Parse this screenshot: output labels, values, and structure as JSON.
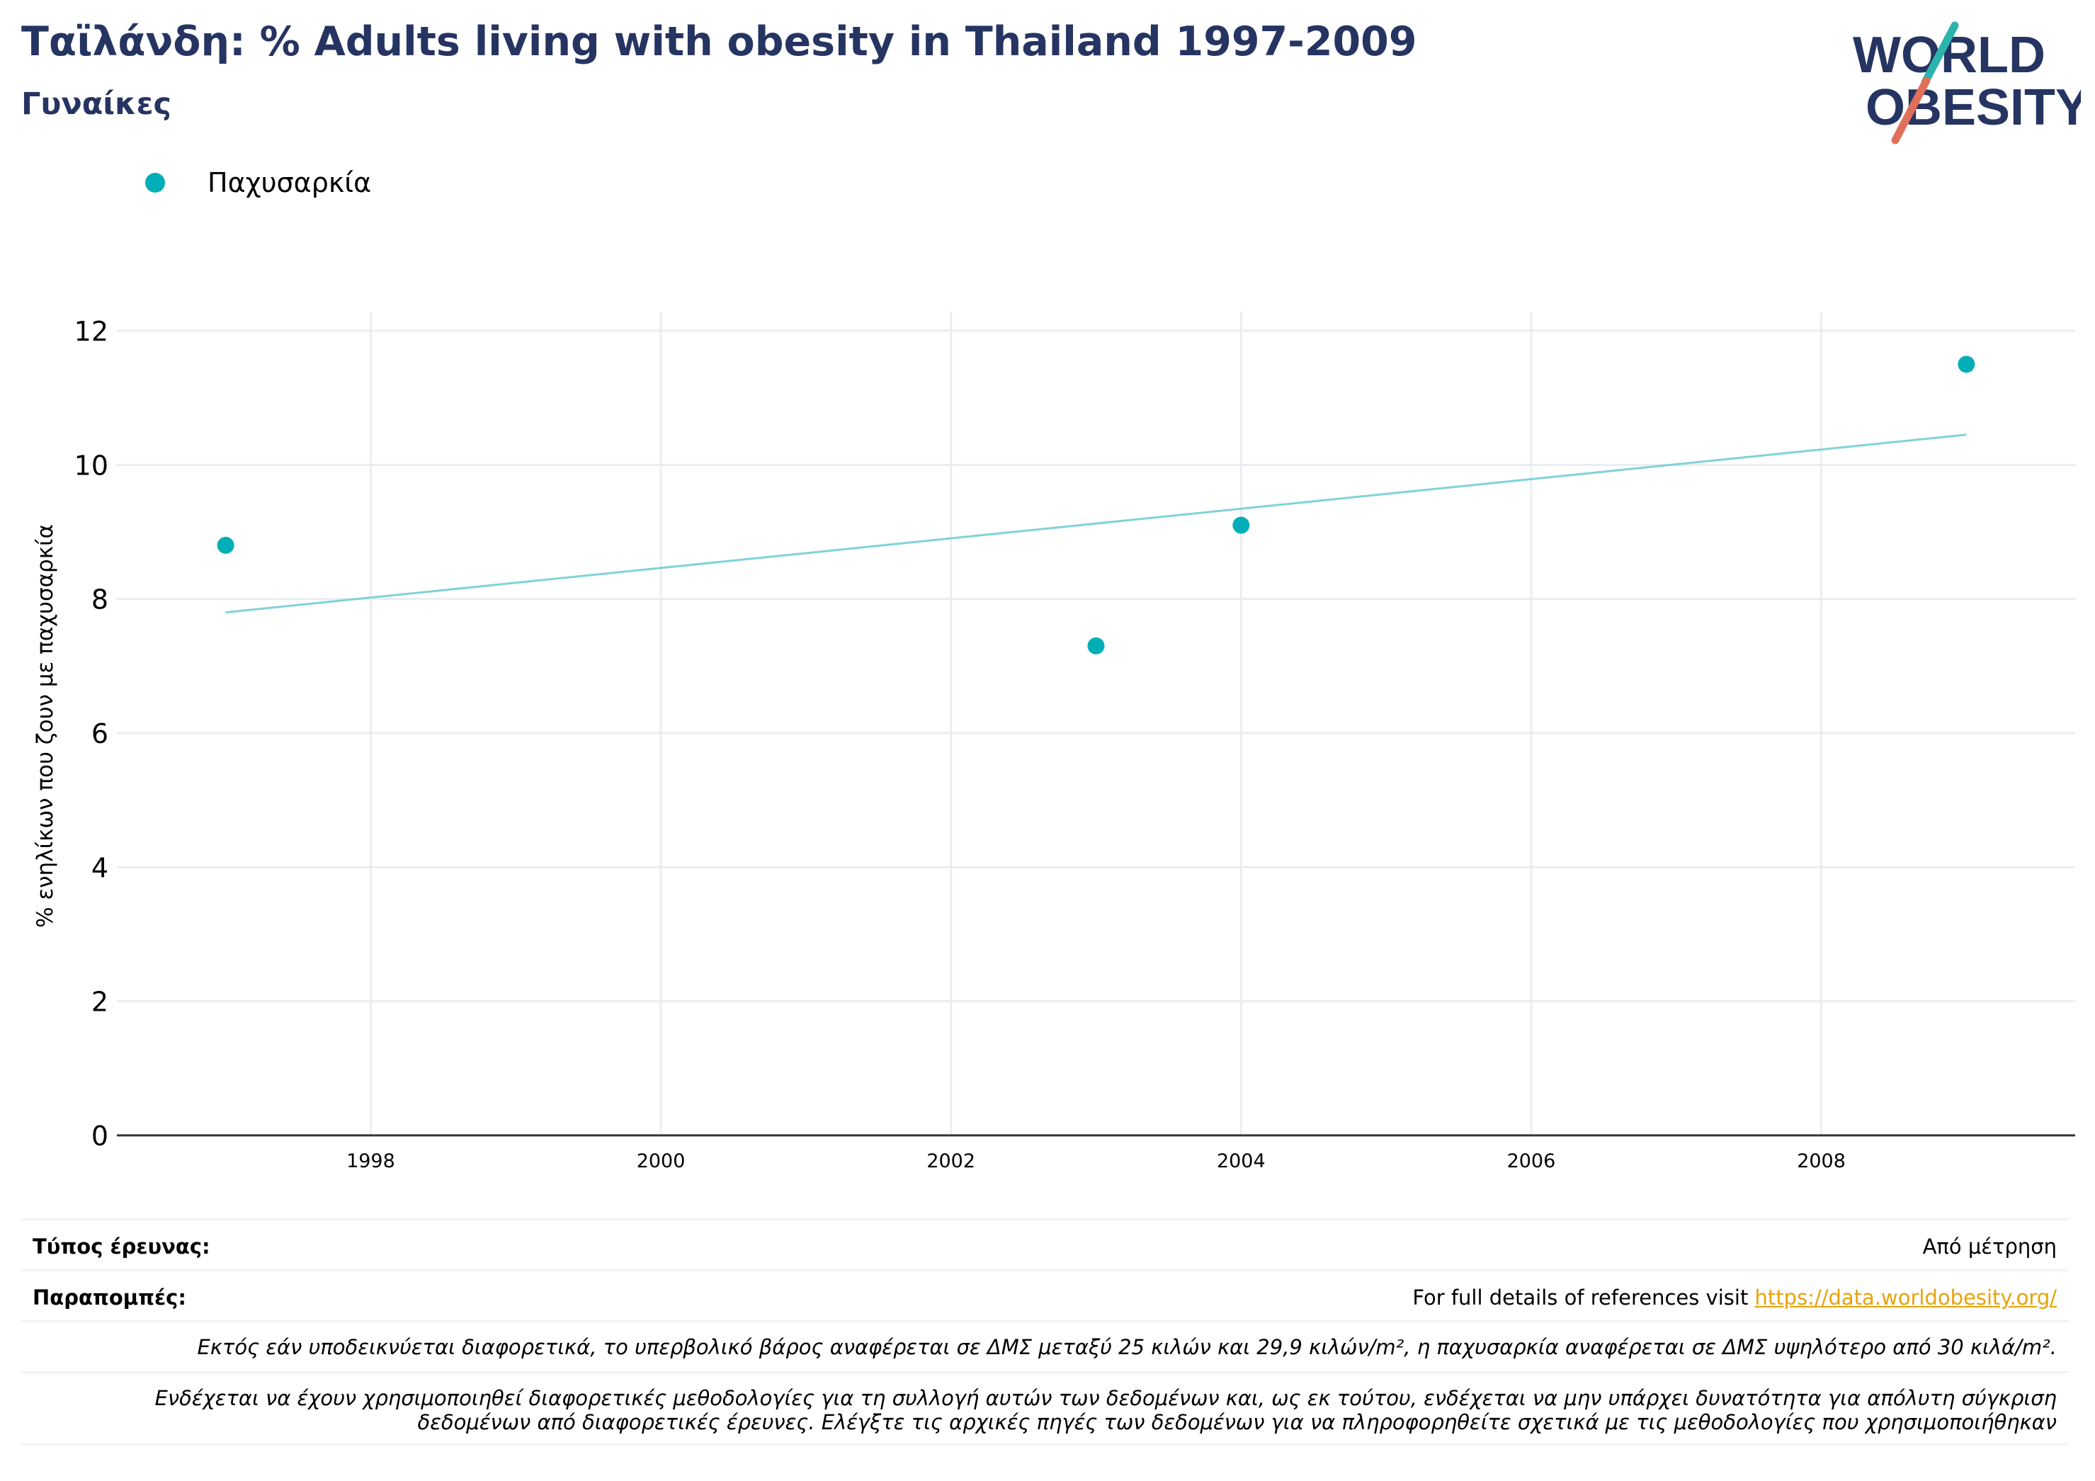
{
  "header": {
    "title": "Ταϊλάνδη: % Adults living with obesity in Thailand 1997-2009",
    "subtitle": "Γυναίκες"
  },
  "logo": {
    "line1": "WORLD",
    "line2": "OBESITY"
  },
  "colors": {
    "title": "#263462",
    "series": "#00aeb8",
    "trend": "#7fd3d8",
    "grid": "#eaedf1",
    "axis": "#333333",
    "link": "#e8a20a",
    "logo_slash_top": "#2bb4ad",
    "logo_slash_bottom": "#e0705a"
  },
  "chart_data": {
    "type": "scatter",
    "title": "Ταϊλάνδη: % Adults living with obesity in Thailand 1997-2009",
    "subtitle": "Γυναίκες",
    "xlabel": "",
    "ylabel": "% ενηλίκων που ζουν με παχυσαρκία",
    "xlim": [
      1996.25,
      2009.75
    ],
    "ylim": [
      0,
      12
    ],
    "x_ticks": [
      1998,
      2000,
      2002,
      2004,
      2006,
      2008
    ],
    "y_ticks": [
      0,
      2,
      4,
      6,
      8,
      10,
      12
    ],
    "grid": true,
    "legend": "top-left",
    "series": [
      {
        "name": "Παχυσαρκία",
        "points": [
          {
            "x": 1997,
            "y": 8.8
          },
          {
            "x": 2003,
            "y": 7.3
          },
          {
            "x": 2004,
            "y": 9.1
          },
          {
            "x": 2009,
            "y": 11.5
          }
        ]
      }
    ],
    "trendline": {
      "x": [
        1997,
        2009
      ],
      "y": [
        7.8,
        10.45
      ]
    }
  },
  "footer": {
    "survey_type_label": "Τύπος έρευνας:",
    "survey_type_value": "Από μέτρηση",
    "references_label": "Παραπομπές:",
    "references_text": "For full details of references visit ",
    "references_link": "https://data.worldobesity.org/",
    "note1": "Εκτός εάν υποδεικνύεται διαφορετικά, το υπερβολικό βάρος αναφέρεται σε ΔΜΣ μεταξύ 25 κιλών και 29,9 κιλών/m², η παχυσαρκία αναφέρεται σε ΔΜΣ υψηλότερο από 30 κιλά/m².",
    "note2_line1": "Ενδέχεται να έχουν χρησιμοποιηθεί διαφορετικές μεθοδολογίες για τη συλλογή αυτών των δεδομένων και, ως εκ τούτου, ενδέχεται να μην υπάρχει δυνατότητα για απόλυτη σύγκριση",
    "note2_line2": "δεδομένων από διαφορετικές έρευνες. Ελέγξτε τις αρχικές πηγές των δεδομένων για να πληροφορηθείτε σχετικά με τις μεθοδολογίες που χρησιμοποιήθηκαν"
  }
}
